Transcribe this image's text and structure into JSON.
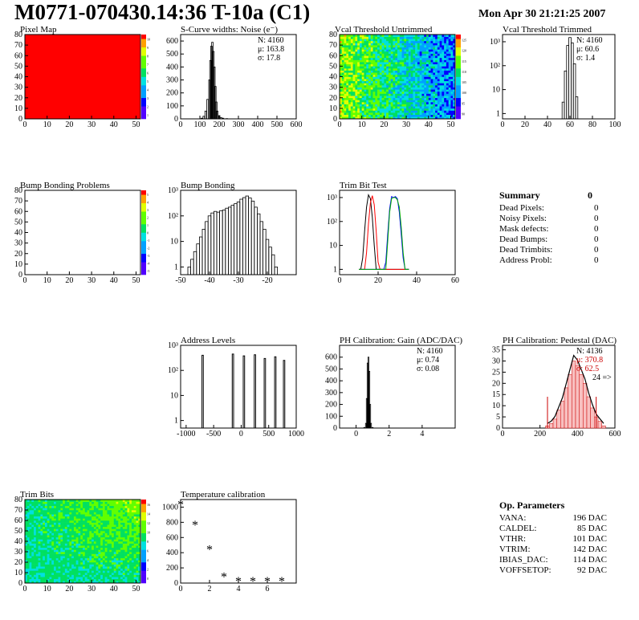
{
  "title": "M0771-070430.14:36 T-10a (C1)",
  "date": "Mon Apr 30 21:21:25 2007",
  "chart_data": [
    {
      "type": "heatmap",
      "title": "Pixel Map",
      "xlim": [
        0,
        52
      ],
      "ylim": [
        0,
        80
      ],
      "xticks": [
        "0",
        "10",
        "20",
        "30",
        "40",
        "50"
      ],
      "yticks": [
        "0",
        "10",
        "20",
        "30",
        "40",
        "50",
        "60",
        "70",
        "80"
      ],
      "fill": "uniform",
      "fill_color": "#ff0000",
      "palette_ticks": [
        "1",
        "2",
        "3",
        "4",
        "5",
        "6",
        "7",
        "8",
        "9",
        "10"
      ]
    },
    {
      "type": "bar",
      "title": "S-Curve widths: Noise (e⁻)",
      "xlim": [
        0,
        600
      ],
      "ylim": [
        0,
        650
      ],
      "xticks": [
        "0",
        "100",
        "200",
        "300",
        "400",
        "500",
        "600"
      ],
      "yticks": [
        "0",
        "100",
        "200",
        "300",
        "400",
        "500",
        "600"
      ],
      "x": [
        110,
        120,
        130,
        140,
        150,
        155,
        160,
        165,
        170,
        175,
        180,
        185,
        190,
        200,
        210,
        220,
        240
      ],
      "values": [
        5,
        20,
        60,
        150,
        300,
        450,
        560,
        590,
        520,
        400,
        250,
        130,
        60,
        25,
        10,
        5,
        2
      ],
      "stats": {
        "N": "4160",
        "mean": "163.8",
        "sigma": "17.8"
      }
    },
    {
      "type": "heatmap",
      "title": "Vcal Threshold Untrimmed",
      "xlim": [
        0,
        52
      ],
      "ylim": [
        0,
        80
      ],
      "xticks": [
        "0",
        "10",
        "20",
        "30",
        "40",
        "50"
      ],
      "yticks": [
        "0",
        "10",
        "20",
        "30",
        "40",
        "50",
        "60",
        "70",
        "80"
      ],
      "fill": "noise-gradient",
      "palette_ticks": [
        "90",
        "95",
        "100",
        "105",
        "110",
        "115",
        "120",
        "125"
      ]
    },
    {
      "type": "bar",
      "title": "Vcal Threshold Trimmed",
      "xlim": [
        0,
        100
      ],
      "ylim_log": [
        0.6,
        2000
      ],
      "xticks": [
        "0",
        "20",
        "40",
        "60",
        "80",
        "100"
      ],
      "yticks_log": [
        "1",
        "10",
        "10²",
        "10³"
      ],
      "x": [
        54,
        56,
        58,
        60,
        62,
        64,
        66
      ],
      "values": [
        3,
        60,
        700,
        1500,
        900,
        120,
        5
      ],
      "stats": {
        "N": "4160",
        "mean": "60.6",
        "sigma": "1.4"
      }
    },
    {
      "type": "heatmap",
      "title": "Bump Bonding Problems",
      "xlim": [
        0,
        52
      ],
      "ylim": [
        0,
        80
      ],
      "xticks": [
        "0",
        "10",
        "20",
        "30",
        "40",
        "50"
      ],
      "yticks": [
        "0",
        "10",
        "20",
        "30",
        "40",
        "50",
        "60",
        "70",
        "80"
      ],
      "fill": "empty",
      "palette_ticks": [
        "-5",
        "-4",
        "-3",
        "-2",
        "-1",
        "0",
        "1",
        "2",
        "3",
        "4",
        "5"
      ]
    },
    {
      "type": "bar",
      "title": "Bump Bonding",
      "xlim": [
        -50,
        -10
      ],
      "ylim_log": [
        0.5,
        1000
      ],
      "xticks": [
        "-50",
        "-40",
        "-30",
        "-20"
      ],
      "yticks_log": [
        "1",
        "10",
        "10²",
        "10³"
      ],
      "x": [
        -47,
        -46,
        -45,
        -44,
        -43,
        -42,
        -41,
        -40,
        -39,
        -38,
        -37,
        -36,
        -35,
        -34,
        -33,
        -32,
        -31,
        -30,
        -29,
        -28,
        -27,
        -26,
        -25,
        -24,
        -23,
        -22,
        -21,
        -20,
        -19,
        -18,
        -17,
        -16
      ],
      "values": [
        1,
        2,
        4,
        8,
        15,
        30,
        60,
        100,
        130,
        150,
        140,
        160,
        170,
        200,
        220,
        260,
        300,
        350,
        450,
        520,
        600,
        500,
        380,
        220,
        120,
        60,
        30,
        12,
        6,
        3,
        1,
        0
      ]
    },
    {
      "type": "line",
      "title": "Trim Bit Test",
      "xlim": [
        0,
        60
      ],
      "ylim_log": [
        0.6,
        2000
      ],
      "xticks": [
        "0",
        "20",
        "40",
        "60"
      ],
      "yticks_log": [
        "1",
        "10",
        "10²",
        "10³"
      ],
      "x": [
        10,
        11,
        12,
        13,
        14,
        15,
        16,
        17,
        18,
        19,
        20,
        21,
        22,
        23,
        24,
        25,
        26,
        27,
        28,
        29,
        30,
        31,
        32,
        33,
        34,
        35,
        36
      ],
      "series": [
        {
          "color": "#000000",
          "values": [
            1,
            1,
            3,
            40,
            400,
            1300,
            900,
            150,
            10,
            1,
            1,
            1,
            1,
            1,
            1,
            1,
            1,
            1,
            1,
            1,
            1,
            1,
            1,
            1,
            1,
            1,
            1
          ]
        },
        {
          "color": "#ff0000",
          "values": [
            1,
            1,
            1,
            1,
            5,
            80,
            600,
            1200,
            500,
            40,
            2,
            1,
            1,
            1,
            1,
            1,
            1,
            1,
            1,
            1,
            1,
            1,
            1,
            1,
            1,
            1,
            1
          ]
        },
        {
          "color": "#0000ff",
          "values": [
            1,
            1,
            1,
            1,
            1,
            1,
            1,
            1,
            1,
            1,
            1,
            1,
            1,
            1,
            2,
            30,
            350,
            1100,
            1000,
            1100,
            900,
            250,
            30,
            3,
            1,
            1,
            1
          ]
        },
        {
          "color": "#00aa00",
          "values": [
            1,
            1,
            1,
            1,
            1,
            1,
            1,
            1,
            1,
            1,
            1,
            1,
            1,
            1,
            1,
            15,
            250,
            900,
            1000,
            1000,
            800,
            400,
            60,
            5,
            1,
            1,
            1
          ]
        }
      ]
    },
    {
      "type": "bar",
      "title": "Address Levels",
      "xlim": [
        -1100,
        1000
      ],
      "ylim_log": [
        0.5,
        1000
      ],
      "xticks": [
        "-1000",
        "-500",
        "0",
        "500",
        "1000"
      ],
      "yticks_log": [
        "1",
        "10",
        "10²",
        "10³"
      ],
      "x": [
        -700,
        -150,
        50,
        250,
        430,
        620,
        780
      ],
      "values": [
        400,
        450,
        380,
        420,
        300,
        350,
        250
      ]
    },
    {
      "type": "bar",
      "title": "PH Calibration: Gain (ADC/DAC)",
      "xlim": [
        -1,
        6
      ],
      "ylim": [
        0,
        700
      ],
      "xticks": [
        "0",
        "2",
        "4"
      ],
      "yticks": [
        "0",
        "100",
        "200",
        "300",
        "400",
        "500",
        "600"
      ],
      "x": [
        0.5,
        0.6,
        0.65,
        0.7,
        0.75,
        0.8,
        0.85,
        0.9,
        1.0
      ],
      "values": [
        5,
        40,
        250,
        550,
        600,
        480,
        200,
        40,
        5
      ],
      "stats": {
        "N": "4160",
        "mean": "0.74",
        "sigma": "0.08"
      }
    },
    {
      "type": "bar",
      "title": "PH Calibration: Pedestal (DAC)",
      "xlim": [
        0,
        600
      ],
      "ylim": [
        0,
        37
      ],
      "xticks": [
        "0",
        "200",
        "400",
        "600"
      ],
      "yticks": [
        "0",
        "5",
        "10",
        "15",
        "20",
        "25",
        "30",
        "35"
      ],
      "x": [
        240,
        260,
        280,
        300,
        320,
        340,
        360,
        380,
        400,
        420,
        440,
        460,
        480,
        500,
        520,
        540
      ],
      "values": [
        1,
        2,
        4,
        8,
        12,
        18,
        24,
        30,
        28,
        24,
        20,
        14,
        9,
        5,
        3,
        1
      ],
      "stats": {
        "N": "4136",
        "mean": "370.8",
        "sigma": "62.5"
      },
      "annotation": "24 =>"
    },
    {
      "type": "heatmap",
      "title": "Trim Bits",
      "xlim": [
        0,
        52
      ],
      "ylim": [
        0,
        80
      ],
      "xticks": [
        "0",
        "10",
        "20",
        "30",
        "40",
        "50"
      ],
      "yticks": [
        "0",
        "10",
        "20",
        "30",
        "40",
        "50",
        "60",
        "70",
        "80"
      ],
      "fill": "noise-green",
      "palette_ticks": [
        "0",
        "2",
        "4",
        "6",
        "8",
        "10",
        "12",
        "14",
        "16"
      ]
    },
    {
      "type": "scatter",
      "title": "Temperature calibration",
      "xlim": [
        0,
        8
      ],
      "ylim": [
        0,
        1100
      ],
      "xticks": [
        "0",
        "2",
        "4",
        "6"
      ],
      "yticks": [
        "0",
        "200",
        "400",
        "600",
        "800",
        "1000"
      ],
      "x": [
        0,
        1,
        2,
        3,
        4,
        5,
        6,
        7
      ],
      "values": [
        1030,
        760,
        440,
        80,
        20,
        20,
        20,
        20
      ]
    }
  ],
  "summary": {
    "title": "Summary",
    "total": "0",
    "rows": [
      {
        "label": "Dead Pixels:",
        "value": "0"
      },
      {
        "label": "Noisy Pixels:",
        "value": "0"
      },
      {
        "label": "Mask defects:",
        "value": "0"
      },
      {
        "label": "Dead Bumps:",
        "value": "0"
      },
      {
        "label": "Dead Trimbits:",
        "value": "0"
      },
      {
        "label": "Address Probl:",
        "value": "0"
      }
    ]
  },
  "op_params": {
    "title": "Op. Parameters",
    "rows": [
      {
        "label": "VANA:",
        "value": "196 DAC"
      },
      {
        "label": "CALDEL:",
        "value": "85 DAC"
      },
      {
        "label": "VTHR:",
        "value": "101 DAC"
      },
      {
        "label": "VTRIM:",
        "value": "142 DAC"
      },
      {
        "label": "IBIAS_DAC:",
        "value": "114 DAC"
      },
      {
        "label": "VOFFSETOP:",
        "value": "92 DAC"
      }
    ]
  }
}
